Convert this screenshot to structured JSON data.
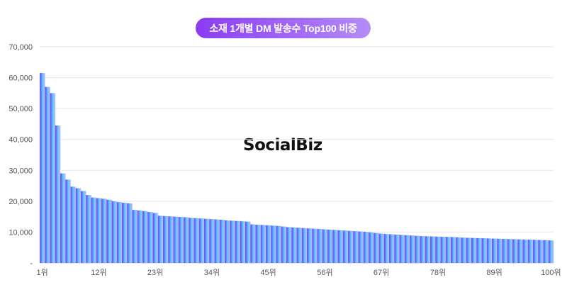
{
  "chart_data": {
    "type": "bar",
    "title": "소재 1개별 DM 발송수 Top100 비중",
    "watermark": "SocialBiz",
    "ylim": [
      0,
      70000
    ],
    "yticks": [
      "-",
      "10,000",
      "20,000",
      "30,000",
      "40,000",
      "50,000",
      "60,000",
      "70,000"
    ],
    "xticks": [
      "1위",
      "12위",
      "23위",
      "34위",
      "45위",
      "56위",
      "67위",
      "78위",
      "89위",
      "100위"
    ],
    "grid": true,
    "colors": {
      "gradient_start": "#6a5cff",
      "gradient_mid": "#55d8fc",
      "gradient_lavender": "#b9aaf8",
      "gradient_end": "#b5eefc",
      "title_bg": "#8a3cf2"
    },
    "values": [
      61500,
      57000,
      55000,
      44500,
      29000,
      27000,
      24700,
      24200,
      23300,
      22000,
      21200,
      21000,
      20800,
      20500,
      20000,
      19700,
      19500,
      19300,
      17200,
      17000,
      16800,
      16500,
      16200,
      15300,
      15200,
      15100,
      15000,
      14900,
      14800,
      14600,
      14500,
      14400,
      14300,
      14200,
      14100,
      14000,
      13800,
      13700,
      13600,
      13500,
      13400,
      12500,
      12400,
      12300,
      12200,
      12100,
      12000,
      11800,
      11600,
      11500,
      11400,
      11300,
      11200,
      11100,
      11000,
      10900,
      10800,
      10700,
      10600,
      10500,
      10400,
      10300,
      10200,
      10100,
      9900,
      9700,
      9500,
      9400,
      9300,
      9200,
      9100,
      9000,
      8900,
      8800,
      8700,
      8650,
      8600,
      8550,
      8500,
      8450,
      8400,
      8300,
      8200,
      8150,
      8100,
      8050,
      8000,
      7950,
      7900,
      7850,
      7800,
      7750,
      7700,
      7650,
      7600,
      7550,
      7500,
      7450,
      7400,
      7300
    ]
  }
}
